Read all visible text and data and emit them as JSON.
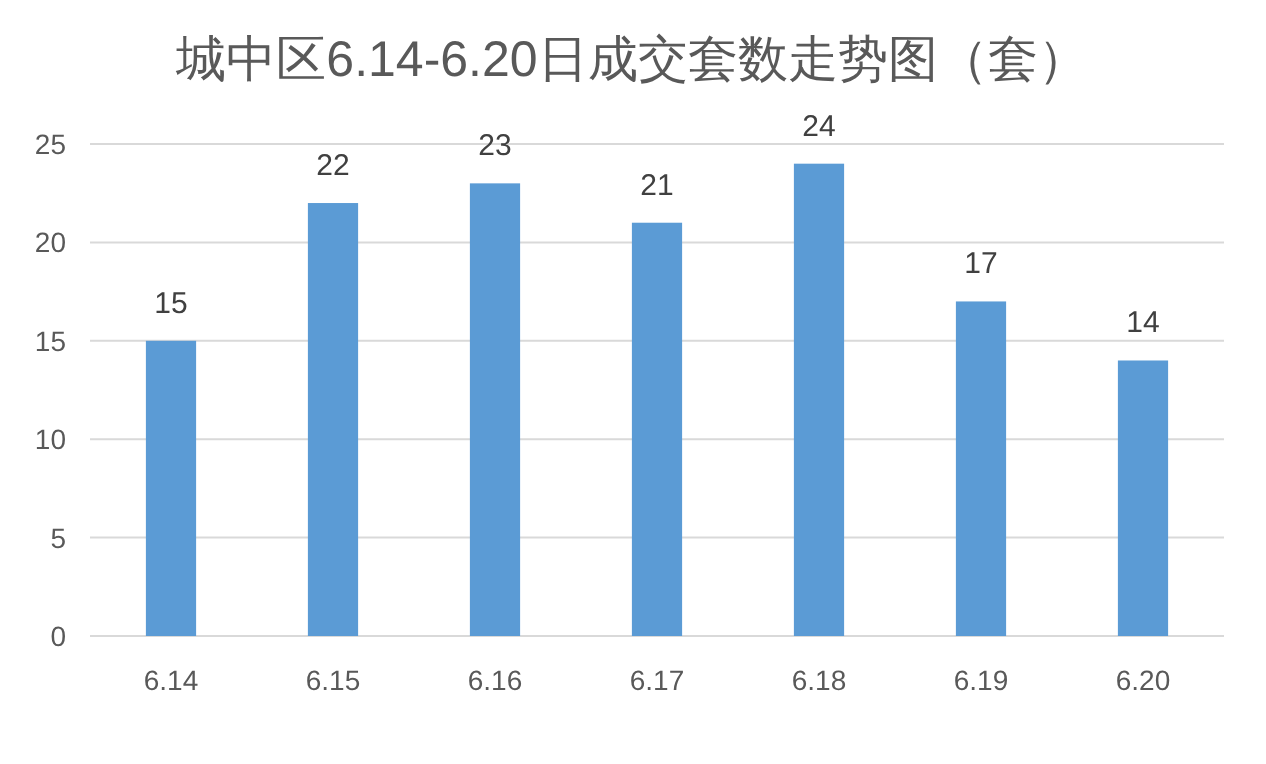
{
  "chart_data": {
    "type": "bar",
    "title": "城中区6.14-6.20日成交套数走势图（套）",
    "categories": [
      "6.14",
      "6.15",
      "6.16",
      "6.17",
      "6.18",
      "6.19",
      "6.20"
    ],
    "values": [
      15,
      22,
      23,
      21,
      24,
      17,
      14
    ],
    "color": "#5b9bd5",
    "ylim": [
      0,
      25
    ],
    "yticks": [
      0,
      5,
      10,
      15,
      20,
      25
    ],
    "grid": "y",
    "data_labels": true
  }
}
